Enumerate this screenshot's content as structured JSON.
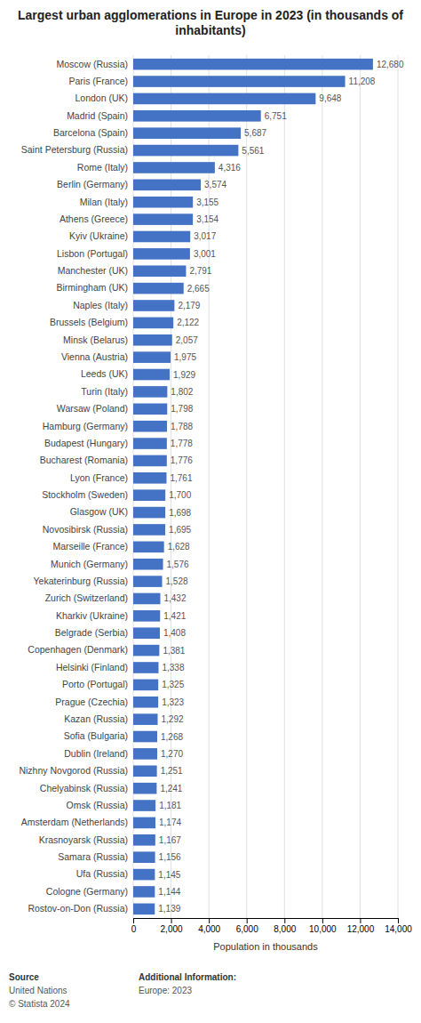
{
  "chart_data": {
    "type": "bar",
    "orientation": "horizontal",
    "title": "Largest urban agglomerations in Europe in 2023 (in thousands of inhabitants)",
    "categories": [
      "Moscow (Russia)",
      "Paris (France)",
      "London (UK)",
      "Madrid (Spain)",
      "Barcelona (Spain)",
      "Saint Petersburg (Russia)",
      "Rome (Italy)",
      "Berlin (Germany)",
      "Milan (Italy)",
      "Athens (Greece)",
      "Kyiv (Ukraine)",
      "Lisbon (Portugal)",
      "Manchester (UK)",
      "Birmingham (UK)",
      "Naples (Italy)",
      "Brussels (Belgium)",
      "Minsk (Belarus)",
      "Vienna (Austria)",
      "Leeds (UK)",
      "Turin (Italy)",
      "Warsaw (Poland)",
      "Hamburg (Germany)",
      "Budapest (Hungary)",
      "Bucharest (Romania)",
      "Lyon (France)",
      "Stockholm (Sweden)",
      "Glasgow (UK)",
      "Novosibirsk (Russia)",
      "Marseille (France)",
      "Munich (Germany)",
      "Yekaterinburg (Russia)",
      "Zurich (Switzerland)",
      "Kharkiv (Ukraine)",
      "Belgrade (Serbia)",
      "Copenhagen (Denmark)",
      "Helsinki (Finland)",
      "Porto (Portugal)",
      "Prague (Czechia)",
      "Kazan (Russia)",
      "Sofia (Bulgaria)",
      "Dublin (Ireland)",
      "Nizhny Novgorod (Russia)",
      "Chelyabinsk (Russia)",
      "Omsk (Russia)",
      "Amsterdam (Netherlands)",
      "Krasnoyarsk (Russia)",
      "Samara (Russia)",
      "Ufa (Russia)",
      "Cologne (Germany)",
      "Rostov-on-Don (Russia)"
    ],
    "values": [
      12680,
      11208,
      9648,
      6751,
      5687,
      5561,
      4316,
      3574,
      3155,
      3154,
      3017,
      3001,
      2791,
      2665,
      2179,
      2122,
      2057,
      1975,
      1929,
      1802,
      1798,
      1788,
      1778,
      1776,
      1761,
      1700,
      1698,
      1695,
      1628,
      1576,
      1528,
      1432,
      1421,
      1408,
      1381,
      1338,
      1325,
      1323,
      1292,
      1268,
      1270,
      1251,
      1241,
      1181,
      1174,
      1167,
      1156,
      1145,
      1144,
      1139
    ],
    "value_labels": [
      "12,680",
      "11,208",
      "9,648",
      "6,751",
      "5,687",
      "5,561",
      "4,316",
      "3,574",
      "3,155",
      "3,154",
      "3,017",
      "3,001",
      "2,791",
      "2,665",
      "2,179",
      "2,122",
      "2,057",
      "1,975",
      "1,929",
      "1,802",
      "1,798",
      "1,788",
      "1,778",
      "1,776",
      "1,761",
      "1,700",
      "1,698",
      "1,695",
      "1,628",
      "1,576",
      "1,528",
      "1,432",
      "1,421",
      "1,408",
      "1,381",
      "1,338",
      "1,325",
      "1,323",
      "1,292",
      "1,268",
      "1,270",
      "1,251",
      "1,241",
      "1,181",
      "1,174",
      "1,167",
      "1,156",
      "1,145",
      "1,144",
      "1,139"
    ],
    "data_labels": true,
    "color": "#4472c4",
    "xlabel": "Population in thousands",
    "xlim": [
      0,
      14000
    ],
    "xticks": [
      0,
      {
        "value": 2000,
        "label": "2,000"
      },
      {
        "value": 4000,
        "label": "4,000"
      },
      {
        "value": 6000,
        "label": "6,000"
      },
      {
        "value": 8000,
        "label": "8,000"
      },
      {
        "value": 10000,
        "label": "10,000"
      },
      {
        "value": 12000,
        "label": "12,000"
      },
      {
        "value": 14000,
        "label": "14,000"
      }
    ],
    "grid": true,
    "annotations": [
      [
        "Source",
        "United Nations",
        "© Statista 2024"
      ],
      [
        "Additional Information:",
        "Europe: 2023"
      ]
    ]
  }
}
